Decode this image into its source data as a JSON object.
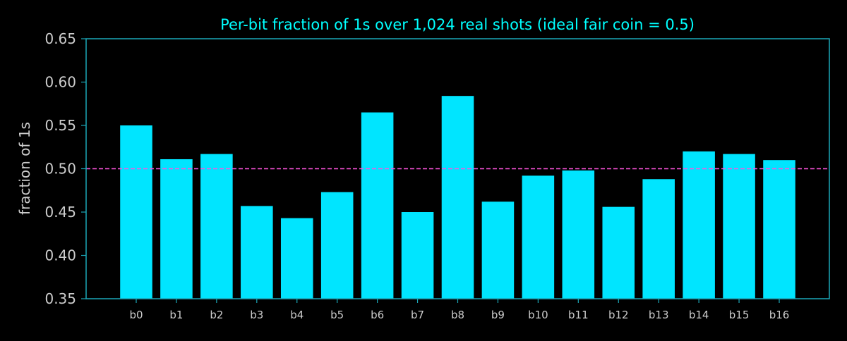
{
  "chart_data": {
    "type": "bar",
    "title": "Per-bit fraction of 1s over 1,024 real shots (ideal fair coin = 0.5)",
    "xlabel": "",
    "ylabel": "fraction of 1s",
    "ylim": [
      0.35,
      0.65
    ],
    "yticks": [
      "0.35",
      "0.40",
      "0.45",
      "0.50",
      "0.55",
      "0.60",
      "0.65"
    ],
    "categories": [
      "b0",
      "b1",
      "b2",
      "b3",
      "b4",
      "b5",
      "b6",
      "b7",
      "b8",
      "b9",
      "b10",
      "b11",
      "b12",
      "b13",
      "b14",
      "b15",
      "b16"
    ],
    "values": [
      0.55,
      0.511,
      0.517,
      0.457,
      0.443,
      0.473,
      0.565,
      0.45,
      0.584,
      0.462,
      0.492,
      0.498,
      0.456,
      0.488,
      0.52,
      0.517,
      0.51
    ],
    "reference_line": {
      "value": 0.5,
      "style": "dashed"
    },
    "grid": false,
    "colors": {
      "background": "#000000",
      "bar": "#00e5ff",
      "title": "#00ffff",
      "axis_frame": "#1ba7b8",
      "tick_label": "#cccccc",
      "reference_line": "#ff55dd"
    }
  }
}
